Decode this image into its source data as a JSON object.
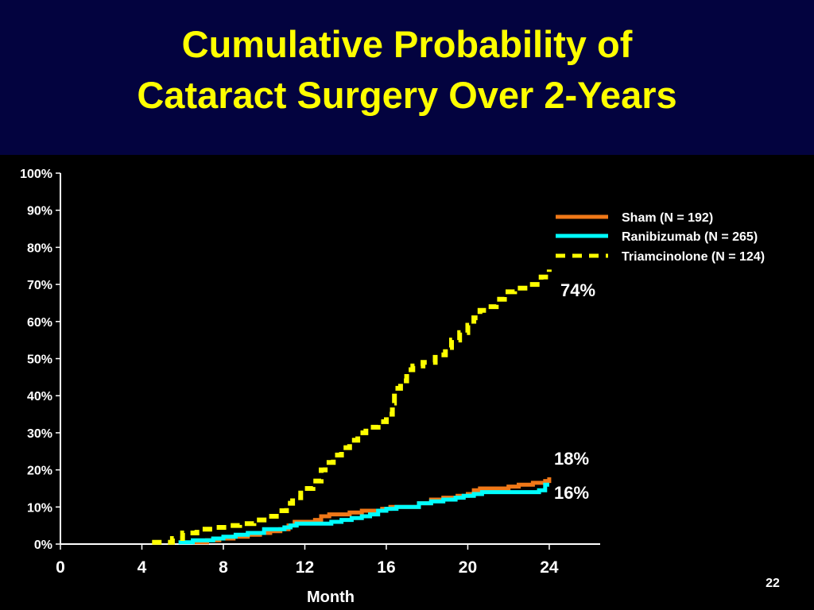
{
  "slide": {
    "title_line_1": "Cumulative Probability of",
    "title_line_2": "Cataract Surgery Over 2-Years",
    "page_number": "22"
  },
  "colors": {
    "title_band": "#03033f",
    "title_text": "#ffff00",
    "background": "#000000",
    "axis": "#ffffff"
  },
  "chart_data": {
    "type": "line",
    "title": "Cumulative Probability of Cataract Surgery Over 2-Years",
    "xlabel": "Month",
    "ylabel": "",
    "xlim": [
      0,
      26.5
    ],
    "ylim": [
      0,
      100
    ],
    "xticks": [
      0,
      4,
      8,
      12,
      16,
      20,
      24
    ],
    "xtick_labels": [
      "0",
      "4",
      "8",
      "12",
      "16",
      "20",
      "24"
    ],
    "yticks": [
      0,
      10,
      20,
      30,
      40,
      50,
      60,
      70,
      80,
      90,
      100
    ],
    "ytick_labels": [
      "0%",
      "10%",
      "20%",
      "30%",
      "40%",
      "50%",
      "60%",
      "70%",
      "80%",
      "90%",
      "100%"
    ],
    "legend_position": "top-right",
    "grid": false,
    "series": [
      {
        "name": "Sham (N = 192)",
        "color": "#f07818",
        "style": "solid",
        "points": [
          [
            6.5,
            0.5
          ],
          [
            7.2,
            1
          ],
          [
            7.8,
            1.5
          ],
          [
            8.5,
            2
          ],
          [
            9.2,
            2.5
          ],
          [
            9.8,
            3
          ],
          [
            10.3,
            3.5
          ],
          [
            10.8,
            4
          ],
          [
            11.2,
            5
          ],
          [
            11.5,
            6
          ],
          [
            12,
            6
          ],
          [
            12.5,
            6.5
          ],
          [
            12.8,
            7.5
          ],
          [
            13.2,
            8
          ],
          [
            13.8,
            8
          ],
          [
            14.2,
            8.5
          ],
          [
            14.8,
            9
          ],
          [
            15.3,
            9
          ],
          [
            15.8,
            9.5
          ],
          [
            16.2,
            10
          ],
          [
            17,
            10
          ],
          [
            17.6,
            11
          ],
          [
            18.2,
            12
          ],
          [
            18.8,
            12.5
          ],
          [
            19.5,
            13
          ],
          [
            20,
            13.5
          ],
          [
            20.3,
            14.5
          ],
          [
            20.6,
            15
          ],
          [
            21.5,
            15
          ],
          [
            22,
            15.5
          ],
          [
            22.5,
            16
          ],
          [
            23.2,
            16.5
          ],
          [
            23.8,
            17
          ],
          [
            24,
            18
          ]
        ]
      },
      {
        "name": "Ranibizumab (N = 265)",
        "color": "#00ffff",
        "style": "solid",
        "points": [
          [
            5.8,
            0.5
          ],
          [
            6.5,
            1
          ],
          [
            7.5,
            1.5
          ],
          [
            8,
            2
          ],
          [
            8.6,
            2.5
          ],
          [
            9.2,
            3
          ],
          [
            9.7,
            3
          ],
          [
            10,
            4
          ],
          [
            10.6,
            4
          ],
          [
            11,
            4.5
          ],
          [
            11.3,
            5
          ],
          [
            11.6,
            5.5
          ],
          [
            12.2,
            5.5
          ],
          [
            12.8,
            5.5
          ],
          [
            13.3,
            6
          ],
          [
            13.8,
            6.5
          ],
          [
            14.3,
            7
          ],
          [
            14.8,
            7.5
          ],
          [
            15.2,
            8
          ],
          [
            15.6,
            9
          ],
          [
            16,
            9.5
          ],
          [
            16.5,
            10
          ],
          [
            17.2,
            10
          ],
          [
            17.6,
            11
          ],
          [
            18.2,
            11.5
          ],
          [
            18.8,
            12
          ],
          [
            19.4,
            12.5
          ],
          [
            19.8,
            13
          ],
          [
            20.3,
            13.5
          ],
          [
            20.7,
            14
          ],
          [
            21.5,
            14
          ],
          [
            22.3,
            14
          ],
          [
            23,
            14
          ],
          [
            23.5,
            14.5
          ],
          [
            23.8,
            16
          ],
          [
            24,
            16
          ]
        ]
      },
      {
        "name": "Triamcinolone (N = 124)",
        "color": "#ffff00",
        "style": "dashed",
        "points": [
          [
            4.5,
            0.5
          ],
          [
            5.5,
            1.5
          ],
          [
            6,
            3
          ],
          [
            6.7,
            4
          ],
          [
            7.5,
            4.5
          ],
          [
            8.2,
            5
          ],
          [
            8.8,
            5.5
          ],
          [
            9.5,
            6.5
          ],
          [
            10,
            7.5
          ],
          [
            10.6,
            9
          ],
          [
            11.1,
            11
          ],
          [
            11.4,
            12.5
          ],
          [
            11.8,
            15
          ],
          [
            12.4,
            17
          ],
          [
            12.8,
            20
          ],
          [
            13,
            22
          ],
          [
            13.4,
            24
          ],
          [
            13.8,
            26
          ],
          [
            14.2,
            28
          ],
          [
            14.6,
            30
          ],
          [
            15,
            31.5
          ],
          [
            15.6,
            33
          ],
          [
            16,
            35
          ],
          [
            16.3,
            38
          ],
          [
            16.4,
            42
          ],
          [
            16.7,
            44
          ],
          [
            17,
            47
          ],
          [
            17.3,
            48
          ],
          [
            17.8,
            49
          ],
          [
            18.4,
            51
          ],
          [
            18.9,
            53
          ],
          [
            19.2,
            55
          ],
          [
            19.6,
            57
          ],
          [
            20,
            59
          ],
          [
            20.3,
            61
          ],
          [
            20.6,
            63
          ],
          [
            21,
            64
          ],
          [
            21.4,
            66
          ],
          [
            21.8,
            68
          ],
          [
            22.3,
            69
          ],
          [
            23,
            70
          ],
          [
            23.6,
            72
          ],
          [
            24,
            74
          ]
        ]
      }
    ],
    "annotations": [
      {
        "text": "74%",
        "series": "Triamcinolone (N = 124)"
      },
      {
        "text": "18%",
        "series": "Sham (N = 192)"
      },
      {
        "text": "16%",
        "series": "Ranibizumab (N = 265)"
      }
    ]
  }
}
